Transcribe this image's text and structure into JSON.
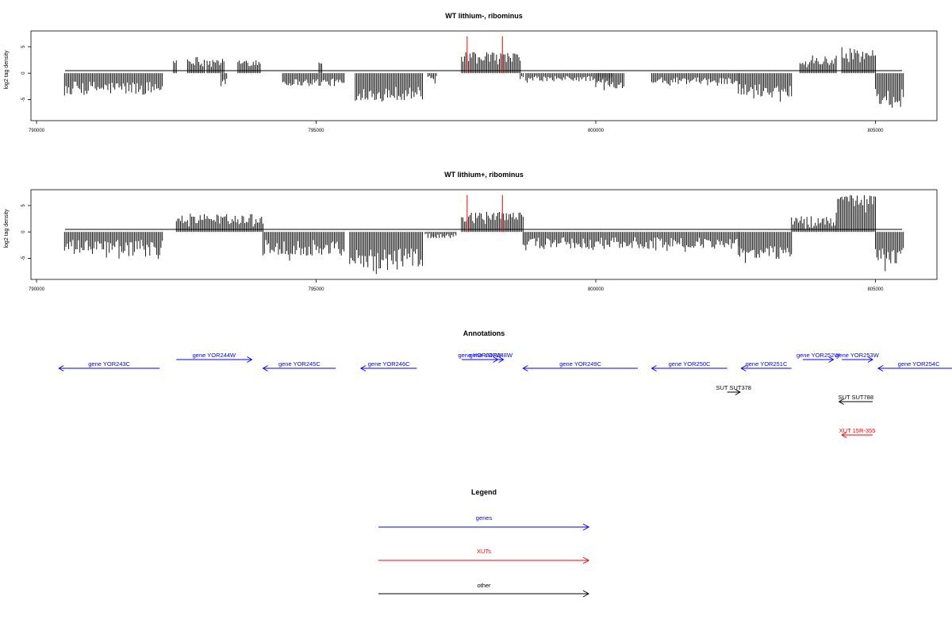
{
  "chart_data": [
    {
      "type": "bar",
      "title": "WT lithium-, ribominus",
      "ylabel": "log2 tag density",
      "xlabel": "",
      "xlim": [
        789900,
        806100
      ],
      "ylim": [
        -9,
        8
      ],
      "xticks": [
        "790000",
        "795000",
        "800000",
        "805000"
      ],
      "yticks": [
        "5",
        "0",
        "-5"
      ],
      "grid": false,
      "baseline": 0,
      "marker_color": "#ff0000",
      "marker_positions": [
        797700,
        798330
      ],
      "marker_height": 7,
      "bar_color": "#000000",
      "bar_spacing_bp": 25,
      "segments": [
        {
          "start": 790500,
          "end": 792250,
          "min": -5.0,
          "max": -1.5
        },
        {
          "start": 792450,
          "end": 792500,
          "min": 1.5,
          "max": 2.8
        },
        {
          "start": 792700,
          "end": 793000,
          "min": 1.0,
          "max": 3.2
        },
        {
          "start": 793050,
          "end": 793350,
          "min": 1.0,
          "max": 2.8
        },
        {
          "start": 793300,
          "end": 793400,
          "min": -3.5,
          "max": -1.0
        },
        {
          "start": 793600,
          "end": 794000,
          "min": 0.8,
          "max": 2.8
        },
        {
          "start": 794400,
          "end": 795500,
          "min": -3.0,
          "max": -1.0
        },
        {
          "start": 795050,
          "end": 795100,
          "min": 1.0,
          "max": 2.2
        },
        {
          "start": 795700,
          "end": 796900,
          "min": -6.0,
          "max": -2.5
        },
        {
          "start": 797000,
          "end": 797150,
          "min": -2.0,
          "max": -0.5
        },
        {
          "start": 797600,
          "end": 798650,
          "min": 1.5,
          "max": 4.0
        },
        {
          "start": 798650,
          "end": 798700,
          "min": -1.5,
          "max": -0.5
        },
        {
          "start": 798750,
          "end": 800300,
          "min": -2.0,
          "max": -0.5
        },
        {
          "start": 800000,
          "end": 800500,
          "min": -3.5,
          "max": -1.0
        },
        {
          "start": 801000,
          "end": 802550,
          "min": -2.5,
          "max": -0.8
        },
        {
          "start": 802550,
          "end": 803500,
          "min": -5.5,
          "max": -2.0
        },
        {
          "start": 803650,
          "end": 804300,
          "min": 1.0,
          "max": 3.5
        },
        {
          "start": 804400,
          "end": 805000,
          "min": 2.0,
          "max": 5.0
        },
        {
          "start": 805000,
          "end": 805500,
          "min": -7.0,
          "max": -3.0
        }
      ]
    },
    {
      "type": "bar",
      "title": "WT lithium+, ribominus",
      "ylabel": "log2 tag density",
      "xlabel": "",
      "xlim": [
        789900,
        806100
      ],
      "ylim": [
        -9,
        8
      ],
      "xticks": [
        "790000",
        "795000",
        "800000",
        "805000"
      ],
      "yticks": [
        "5",
        "0",
        "-5"
      ],
      "grid": false,
      "baseline": 0,
      "marker_color": "#ff0000",
      "marker_positions": [
        797700,
        798330
      ],
      "marker_height": 7,
      "bar_color": "#000000",
      "bar_spacing_bp": 25,
      "segments": [
        {
          "start": 790500,
          "end": 792250,
          "min": -5.5,
          "max": -1.5
        },
        {
          "start": 792500,
          "end": 794050,
          "min": 0.8,
          "max": 3.5
        },
        {
          "start": 794050,
          "end": 795500,
          "min": -5.5,
          "max": -1.5
        },
        {
          "start": 795600,
          "end": 796900,
          "min": -8.0,
          "max": -3.0
        },
        {
          "start": 796950,
          "end": 797500,
          "min": -1.5,
          "max": -0.3
        },
        {
          "start": 797600,
          "end": 798700,
          "min": 1.5,
          "max": 3.8
        },
        {
          "start": 798700,
          "end": 802550,
          "min": -4.0,
          "max": -1.0
        },
        {
          "start": 802550,
          "end": 803500,
          "min": -6.0,
          "max": -2.5
        },
        {
          "start": 803500,
          "end": 804300,
          "min": 0.5,
          "max": 3.0
        },
        {
          "start": 804300,
          "end": 805000,
          "min": 3.5,
          "max": 7.0
        },
        {
          "start": 805000,
          "end": 805500,
          "min": -7.5,
          "max": -3.0
        }
      ]
    }
  ],
  "annotations": {
    "title": "Annotations",
    "features": [
      {
        "label": "gene YOR243C",
        "start": 790400,
        "end": 792200,
        "strand": "-",
        "row": 1,
        "color": "#0000ff"
      },
      {
        "label": "gene YOR244W",
        "start": 792500,
        "end": 793850,
        "strand": "+",
        "row": 0,
        "color": "#0000ff"
      },
      {
        "label": "gene YOR245C",
        "start": 794050,
        "end": 795350,
        "strand": "-",
        "row": 1,
        "color": "#0000ff"
      },
      {
        "label": "gene YOR246C",
        "start": 795800,
        "end": 796800,
        "strand": "-",
        "row": 1,
        "color": "#0000ff"
      },
      {
        "label": "gene YOR247W",
        "start": 797600,
        "end": 798250,
        "strand": "+",
        "row": 0,
        "color": "#0000ff"
      },
      {
        "label": "gene YOR248W",
        "start": 797900,
        "end": 798350,
        "strand": "+",
        "row": 0,
        "color": "#0000ff"
      },
      {
        "label": "gene YOR249C",
        "start": 798700,
        "end": 800750,
        "strand": "-",
        "row": 1,
        "color": "#0000ff"
      },
      {
        "label": "gene YOR250C",
        "start": 801000,
        "end": 802350,
        "strand": "-",
        "row": 1,
        "color": "#0000ff"
      },
      {
        "label": "gene YOR251C",
        "start": 802600,
        "end": 803500,
        "strand": "-",
        "row": 1,
        "color": "#0000ff"
      },
      {
        "label": "gene YOR252W",
        "start": 803700,
        "end": 804250,
        "strand": "+",
        "row": 0,
        "color": "#0000ff"
      },
      {
        "label": "gene YOR253W",
        "start": 804400,
        "end": 804950,
        "strand": "+",
        "row": 0,
        "color": "#0000ff"
      },
      {
        "label": "gene YOR254C",
        "start": 805050,
        "end": 806500,
        "strand": "-",
        "row": 1,
        "color": "#0000ff"
      },
      {
        "label": "SUT SUT378",
        "start": 802350,
        "end": 802580,
        "strand": "+",
        "row": 2,
        "color": "#000000"
      },
      {
        "label": "SUT SUT788",
        "start": 804350,
        "end": 804950,
        "strand": "-",
        "row": 3,
        "color": "#000000"
      },
      {
        "label": "XUT 15R-355",
        "start": 804400,
        "end": 804950,
        "strand": "-",
        "row": 4,
        "color": "#ff0000"
      }
    ]
  },
  "legend": {
    "title": "Legend",
    "items": [
      {
        "label": "genes",
        "color": "#0000ff"
      },
      {
        "label": "XUTs",
        "color": "#ff0000"
      },
      {
        "label": "other",
        "color": "#000000"
      }
    ]
  }
}
